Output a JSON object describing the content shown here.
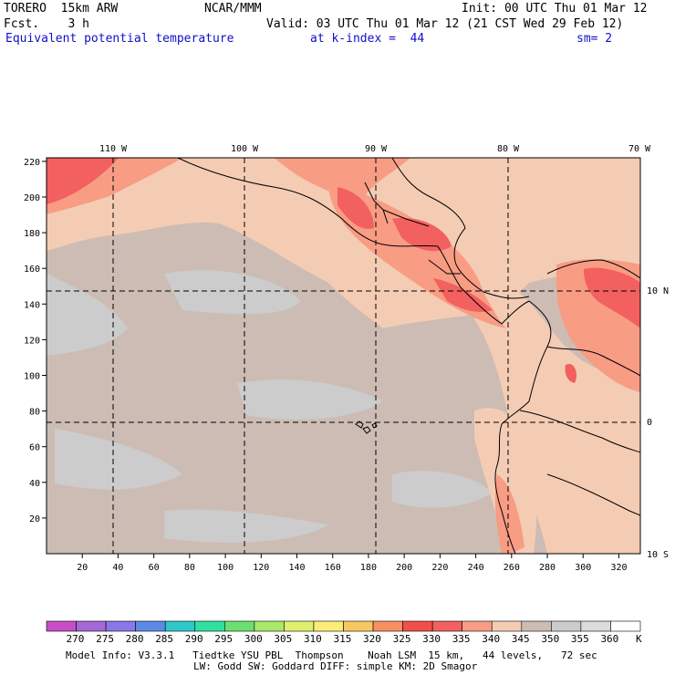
{
  "header": {
    "model": "TORERO  15km ARW",
    "center": "NCAR/MMM",
    "init": "Init: 00 UTC Thu 01 Mar 12",
    "fcst": "Fcst.    3 h",
    "valid": "Valid: 03 UTC Thu 01 Mar 12 (21 CST Wed 29 Feb 12)",
    "field": "Equivalent potential temperature",
    "level": "at k-index =  44",
    "smooth": "sm= 2"
  },
  "map": {
    "x_ticks": [
      "20",
      "40",
      "60",
      "80",
      "100",
      "120",
      "140",
      "160",
      "180",
      "200",
      "220",
      "240",
      "260",
      "280",
      "300",
      "320"
    ],
    "y_ticks": [
      "20",
      "40",
      "60",
      "80",
      "100",
      "120",
      "140",
      "160",
      "180",
      "200",
      "220"
    ],
    "lon_labels": [
      "110 W",
      "100 W",
      "90 W",
      "80 W",
      "70 W"
    ],
    "lat_labels": [
      "10 N",
      "0",
      "10 S"
    ]
  },
  "colorbar": {
    "labels": [
      "270",
      "275",
      "280",
      "285",
      "290",
      "295",
      "300",
      "305",
      "310",
      "315",
      "320",
      "325",
      "330",
      "335",
      "340",
      "345",
      "350",
      "355",
      "360"
    ],
    "unit": "K",
    "colors": [
      "#c84ec8",
      "#a468d8",
      "#8878e8",
      "#5a8ae6",
      "#2ec8c8",
      "#30e0a0",
      "#6ae070",
      "#a8e86a",
      "#e0f06c",
      "#fcec78",
      "#f8c860",
      "#f89060",
      "#f05048",
      "#f26060",
      "#f89c84",
      "#f4ccb4",
      "#ccbcb4",
      "#cccccc",
      "#dcdcdc",
      "#ffffff"
    ]
  },
  "footer": {
    "line1": "Model Info: V3.3.1   Tiedtke YSU PBL  Thompson    Noah LSM  15 km,   44 levels,   72 sec",
    "line2": "LW: Godd SW: Goddard DIFF: simple KM: 2D Smagor"
  }
}
